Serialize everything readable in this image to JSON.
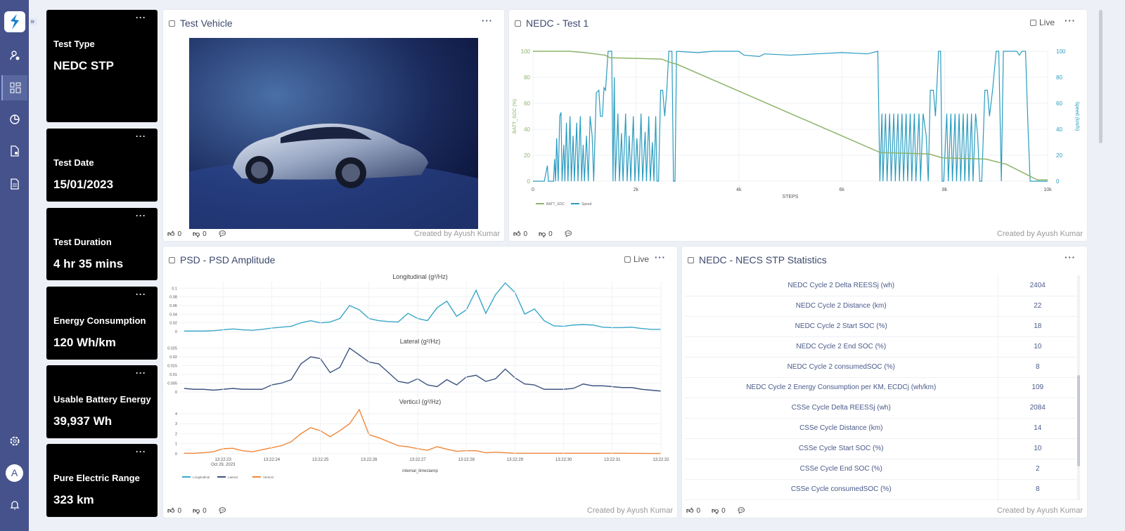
{
  "sidebar": {
    "items": [
      "user-settings",
      "dashboards",
      "analytics",
      "device-config",
      "reports"
    ],
    "bottom": [
      "settings",
      "avatar",
      "notifications"
    ],
    "avatar_letter": "A",
    "expand_label": "»"
  },
  "kpis": [
    {
      "label": "Test Type",
      "value": "NEDC STP"
    },
    {
      "label": "Test Date",
      "value": "15/01/2023"
    },
    {
      "label": "Test Duration",
      "value": "4 hr 35 mins"
    },
    {
      "label": "Energy Consumption",
      "value": "120 Wh/km"
    },
    {
      "label": "Usable Battery Energy",
      "value": "39,937 Wh"
    },
    {
      "label": "Pure Electric Range",
      "value": "323 km"
    }
  ],
  "panels": {
    "vehicle": {
      "title": "Test Vehicle",
      "likes": "0",
      "dislikes": "0",
      "created": "Created by Ayush Kumar"
    },
    "nedc": {
      "title": "NEDC - Test 1",
      "live": "Live",
      "likes": "0",
      "dislikes": "0",
      "created": "Created by Ayush Kumar"
    },
    "psd": {
      "title": "PSD - PSD Amplitude",
      "live": "Live",
      "likes": "0",
      "dislikes": "0",
      "created": "Created by Ayush Kumar"
    },
    "stats": {
      "title": "NEDC - NECS STP Statistics",
      "likes": "0",
      "dislikes": "0",
      "created": "Created by Ayush Kumar",
      "rows": [
        [
          "NEDC Cycle 2 Delta REESSj (wh)",
          "2404"
        ],
        [
          "NEDC Cycle 2 Distance (km)",
          "22"
        ],
        [
          "NEDC Cycle 2 Start SOC (%)",
          "18"
        ],
        [
          "NEDC Cycle 2 End SOC (%)",
          "10"
        ],
        [
          "NEDC Cycle 2 consumedSOC (%)",
          "8"
        ],
        [
          "NEDC Cycle 2 Energy Consumption per KM, ECDCj (wh/km)",
          "109"
        ],
        [
          "CSSe Cycle Delta REESSj (wh)",
          "2084"
        ],
        [
          "CSSe Cycle Distance (km)",
          "14"
        ],
        [
          "CSSe Cycle Start SOC (%)",
          "10"
        ],
        [
          "CSSe Cycle End SOC (%)",
          "2"
        ],
        [
          "CSSe Cycle consumedSOC (%)",
          "8"
        ]
      ]
    }
  },
  "chart_data": [
    {
      "type": "line",
      "xlabel": "STEPS",
      "ylabel": "BATT_SOC (%)",
      "y2label": "Speed (km/h)",
      "xlim": [
        0,
        10000
      ],
      "ylim": [
        0,
        105
      ],
      "y2lim": [
        0,
        105
      ],
      "xticks": [
        "0",
        "2k",
        "4k",
        "6k",
        "8k",
        "10k"
      ],
      "yticks": [
        "0",
        "20",
        "40",
        "60",
        "80",
        "100"
      ],
      "legend": "bottom-left",
      "grid": true,
      "series": [
        {
          "name": "BATT_SOC",
          "color": "#8db36a",
          "axis": "left",
          "points": [
            [
              0,
              100
            ],
            [
              700,
              100
            ],
            [
              1000,
              99
            ],
            [
              1400,
              97
            ],
            [
              1500,
              95
            ],
            [
              2500,
              94
            ],
            [
              2700,
              91
            ],
            [
              2800,
              90
            ],
            [
              6750,
              22
            ],
            [
              7700,
              21
            ],
            [
              7950,
              18
            ],
            [
              8800,
              17
            ],
            [
              9200,
              13
            ],
            [
              9800,
              1
            ],
            [
              10000,
              1
            ]
          ]
        },
        {
          "name": "Speed",
          "color": "#2a9cc0",
          "axis": "right",
          "points": [
            [
              0,
              0
            ],
            [
              220,
              0
            ],
            [
              260,
              8
            ],
            [
              280,
              12
            ],
            [
              300,
              0
            ],
            [
              400,
              0
            ],
            [
              420,
              17
            ],
            [
              440,
              0
            ],
            [
              460,
              33
            ],
            [
              490,
              0
            ],
            [
              520,
              50
            ],
            [
              545,
              53
            ],
            [
              565,
              0
            ],
            [
              600,
              28
            ],
            [
              620,
              0
            ],
            [
              650,
              45
            ],
            [
              680,
              0
            ],
            [
              720,
              50
            ],
            [
              745,
              0
            ],
            [
              780,
              35
            ],
            [
              805,
              0
            ],
            [
              850,
              45
            ],
            [
              875,
              0
            ],
            [
              920,
              50
            ],
            [
              945,
              0
            ],
            [
              975,
              28
            ],
            [
              1000,
              0
            ],
            [
              1040,
              35
            ],
            [
              1075,
              0
            ],
            [
              1110,
              50
            ],
            [
              1150,
              35
            ],
            [
              1180,
              0
            ],
            [
              1230,
              68
            ],
            [
              1280,
              70
            ],
            [
              1310,
              50
            ],
            [
              1350,
              50
            ],
            [
              1380,
              72
            ],
            [
              1410,
              70
            ],
            [
              1460,
              100
            ],
            [
              1530,
              100
            ],
            [
              1555,
              0
            ],
            [
              1580,
              80
            ],
            [
              1600,
              0
            ],
            [
              1650,
              52
            ],
            [
              1680,
              0
            ],
            [
              1720,
              37
            ],
            [
              1750,
              0
            ],
            [
              1800,
              52
            ],
            [
              1830,
              0
            ],
            [
              1870,
              35
            ],
            [
              1900,
              0
            ],
            [
              1950,
              50
            ],
            [
              1980,
              0
            ],
            [
              2020,
              33
            ],
            [
              2055,
              0
            ],
            [
              2100,
              52
            ],
            [
              2130,
              0
            ],
            [
              2180,
              38
            ],
            [
              2205,
              0
            ],
            [
              2250,
              50
            ],
            [
              2280,
              0
            ],
            [
              2320,
              30
            ],
            [
              2350,
              0
            ],
            [
              2385,
              50
            ],
            [
              2410,
              0
            ],
            [
              2440,
              0
            ],
            [
              2480,
              70
            ],
            [
              2520,
              70
            ],
            [
              2560,
              50
            ],
            [
              2600,
              70
            ],
            [
              2640,
              100
            ],
            [
              2700,
              100
            ],
            [
              2730,
              0
            ],
            [
              2760,
              0
            ],
            [
              2790,
              100
            ],
            [
              3200,
              99
            ],
            [
              3500,
              100
            ],
            [
              4000,
              100
            ],
            [
              4100,
              97
            ],
            [
              4400,
              96
            ],
            [
              4500,
              98
            ],
            [
              5000,
              97
            ],
            [
              5500,
              98
            ],
            [
              6000,
              99
            ],
            [
              6500,
              98
            ],
            [
              6700,
              100
            ],
            [
              6740,
              0
            ],
            [
              6780,
              52
            ],
            [
              6800,
              0
            ],
            [
              6850,
              52
            ],
            [
              6880,
              0
            ],
            [
              6930,
              52
            ],
            [
              6960,
              0
            ],
            [
              7010,
              52
            ],
            [
              7040,
              0
            ],
            [
              7090,
              52
            ],
            [
              7120,
              0
            ],
            [
              7170,
              52
            ],
            [
              7200,
              0
            ],
            [
              7250,
              52
            ],
            [
              7280,
              0
            ],
            [
              7330,
              52
            ],
            [
              7360,
              0
            ],
            [
              7410,
              52
            ],
            [
              7440,
              0
            ],
            [
              7500,
              52
            ],
            [
              7530,
              0
            ],
            [
              7580,
              52
            ],
            [
              7640,
              35
            ],
            [
              7680,
              0
            ],
            [
              7720,
              70
            ],
            [
              7780,
              70
            ],
            [
              7820,
              50
            ],
            [
              7880,
              100
            ],
            [
              7920,
              100
            ],
            [
              7950,
              0
            ],
            [
              7980,
              0
            ],
            [
              8040,
              52
            ],
            [
              8070,
              0
            ],
            [
              8120,
              52
            ],
            [
              8150,
              0
            ],
            [
              8200,
              52
            ],
            [
              8230,
              0
            ],
            [
              8280,
              52
            ],
            [
              8310,
              0
            ],
            [
              8360,
              52
            ],
            [
              8390,
              0
            ],
            [
              8440,
              52
            ],
            [
              8470,
              0
            ],
            [
              8520,
              52
            ],
            [
              8550,
              0
            ],
            [
              8600,
              52
            ],
            [
              8640,
              35
            ],
            [
              8680,
              0
            ],
            [
              8720,
              0
            ],
            [
              8780,
              70
            ],
            [
              8830,
              70
            ],
            [
              8870,
              50
            ],
            [
              8930,
              70
            ],
            [
              9000,
              100
            ],
            [
              9050,
              100
            ],
            [
              9100,
              0
            ],
            [
              9140,
              100
            ],
            [
              9400,
              100
            ],
            [
              9450,
              97
            ],
            [
              9500,
              100
            ],
            [
              9570,
              100
            ],
            [
              9620,
              40
            ],
            [
              9660,
              0
            ],
            [
              10000,
              0
            ]
          ]
        }
      ]
    },
    {
      "type": "line",
      "xlabel": "internal_timestamp",
      "date_label": "Oct 29, 2023",
      "legend": "bottom-left",
      "grid": true,
      "xticks": [
        "13:22:23",
        "13:22:24",
        "13:22:25",
        "13:22:26",
        "13:22:27",
        "13:22:28",
        "13:22:29",
        "13:22:30",
        "13:22:31",
        "13:22:32"
      ],
      "x": [
        "13:22:22.2",
        "13:22:22.4",
        "13:22:22.6",
        "13:22:22.8",
        "13:22:23.0",
        "13:22:23.2",
        "13:22:23.4",
        "13:22:23.6",
        "13:22:23.8",
        "13:22:24.0",
        "13:22:24.2",
        "13:22:24.4",
        "13:22:24.6",
        "13:22:24.8",
        "13:22:25.0",
        "13:22:25.2",
        "13:22:25.4",
        "13:22:25.6",
        "13:22:25.8",
        "13:22:26.0",
        "13:22:26.2",
        "13:22:26.4",
        "13:22:26.6",
        "13:22:26.8",
        "13:22:27.0",
        "13:22:27.2",
        "13:22:27.4",
        "13:22:27.6",
        "13:22:27.8",
        "13:22:28.0",
        "13:22:28.2",
        "13:22:28.4",
        "13:22:28.6",
        "13:22:28.8",
        "13:22:29.0",
        "13:22:29.2",
        "13:22:29.4",
        "13:22:29.6",
        "13:22:29.8",
        "13:22:30.0",
        "13:22:30.2",
        "13:22:30.4",
        "13:22:30.6",
        "13:22:30.8",
        "13:22:31.0",
        "13:22:31.2",
        "13:22:31.4",
        "13:22:31.6",
        "13:22:31.8",
        "13:22:32.0"
      ],
      "series": [
        {
          "name": "Longitudinal",
          "title": "Longitudinal (g²/Hz)",
          "color": "#3aa6c8",
          "ylim": [
            0,
            0.115
          ],
          "yticks": [
            "0",
            "0.02",
            "0.04",
            "0.06",
            "0.08",
            "0.1"
          ],
          "values": [
            0.001,
            0.001,
            0.001,
            0.002,
            0.004,
            0.006,
            0.004,
            0.003,
            0.005,
            0.008,
            0.01,
            0.012,
            0.02,
            0.025,
            0.02,
            0.022,
            0.03,
            0.06,
            0.05,
            0.03,
            0.025,
            0.023,
            0.022,
            0.042,
            0.03,
            0.025,
            0.055,
            0.07,
            0.035,
            0.05,
            0.095,
            0.042,
            0.085,
            0.112,
            0.09,
            0.04,
            0.052,
            0.025,
            0.013,
            0.012,
            0.015,
            0.016,
            0.015,
            0.01,
            0.009,
            0.009,
            0.01,
            0.007,
            0.005,
            0.005
          ]
        },
        {
          "name": "Lateral",
          "title": "Lateral (g²/Hz)",
          "color": "#3d5580",
          "ylim": [
            0,
            0.026
          ],
          "yticks": [
            "0",
            "0.005",
            "0.01",
            "0.015",
            "0.02",
            "0.025"
          ],
          "values": [
            0.002,
            0.0015,
            0.0015,
            0.001,
            0.0015,
            0.002,
            0.0015,
            0.0015,
            0.0015,
            0.004,
            0.005,
            0.007,
            0.016,
            0.02,
            0.019,
            0.011,
            0.014,
            0.025,
            0.021,
            0.017,
            0.016,
            0.011,
            0.006,
            0.005,
            0.0075,
            0.004,
            0.003,
            0.007,
            0.004,
            0.0085,
            0.0095,
            0.006,
            0.0075,
            0.013,
            0.008,
            0.0045,
            0.004,
            0.0015,
            0.0015,
            0.0015,
            0.002,
            0.0045,
            0.0035,
            0.0035,
            0.003,
            0.0025,
            0.0025,
            0.0015,
            0.001,
            0.0005
          ]
        },
        {
          "name": "Vertical",
          "title": "Vertical (g²/Hz)",
          "color": "#f0873a",
          "ylim": [
            0,
            4.7
          ],
          "yticks": [
            "0",
            "1",
            "2",
            "3",
            "4"
          ],
          "values": [
            0.05,
            0.05,
            0.1,
            0.2,
            0.5,
            0.55,
            0.3,
            0.2,
            0.4,
            0.6,
            0.8,
            1.2,
            2.0,
            2.6,
            2.3,
            1.7,
            2.3,
            3.0,
            4.4,
            1.9,
            1.6,
            1.2,
            0.8,
            0.7,
            0.5,
            0.35,
            0.7,
            0.45,
            0.25,
            0.3,
            0.3,
            0.1,
            0.15,
            0.1,
            0.05,
            0.05,
            0.05,
            0.05,
            0.05,
            0.05,
            0.05,
            0.05,
            0.05,
            0.05,
            0.05,
            0.05,
            0.04,
            0.04,
            0.03,
            0.03
          ]
        }
      ]
    }
  ]
}
